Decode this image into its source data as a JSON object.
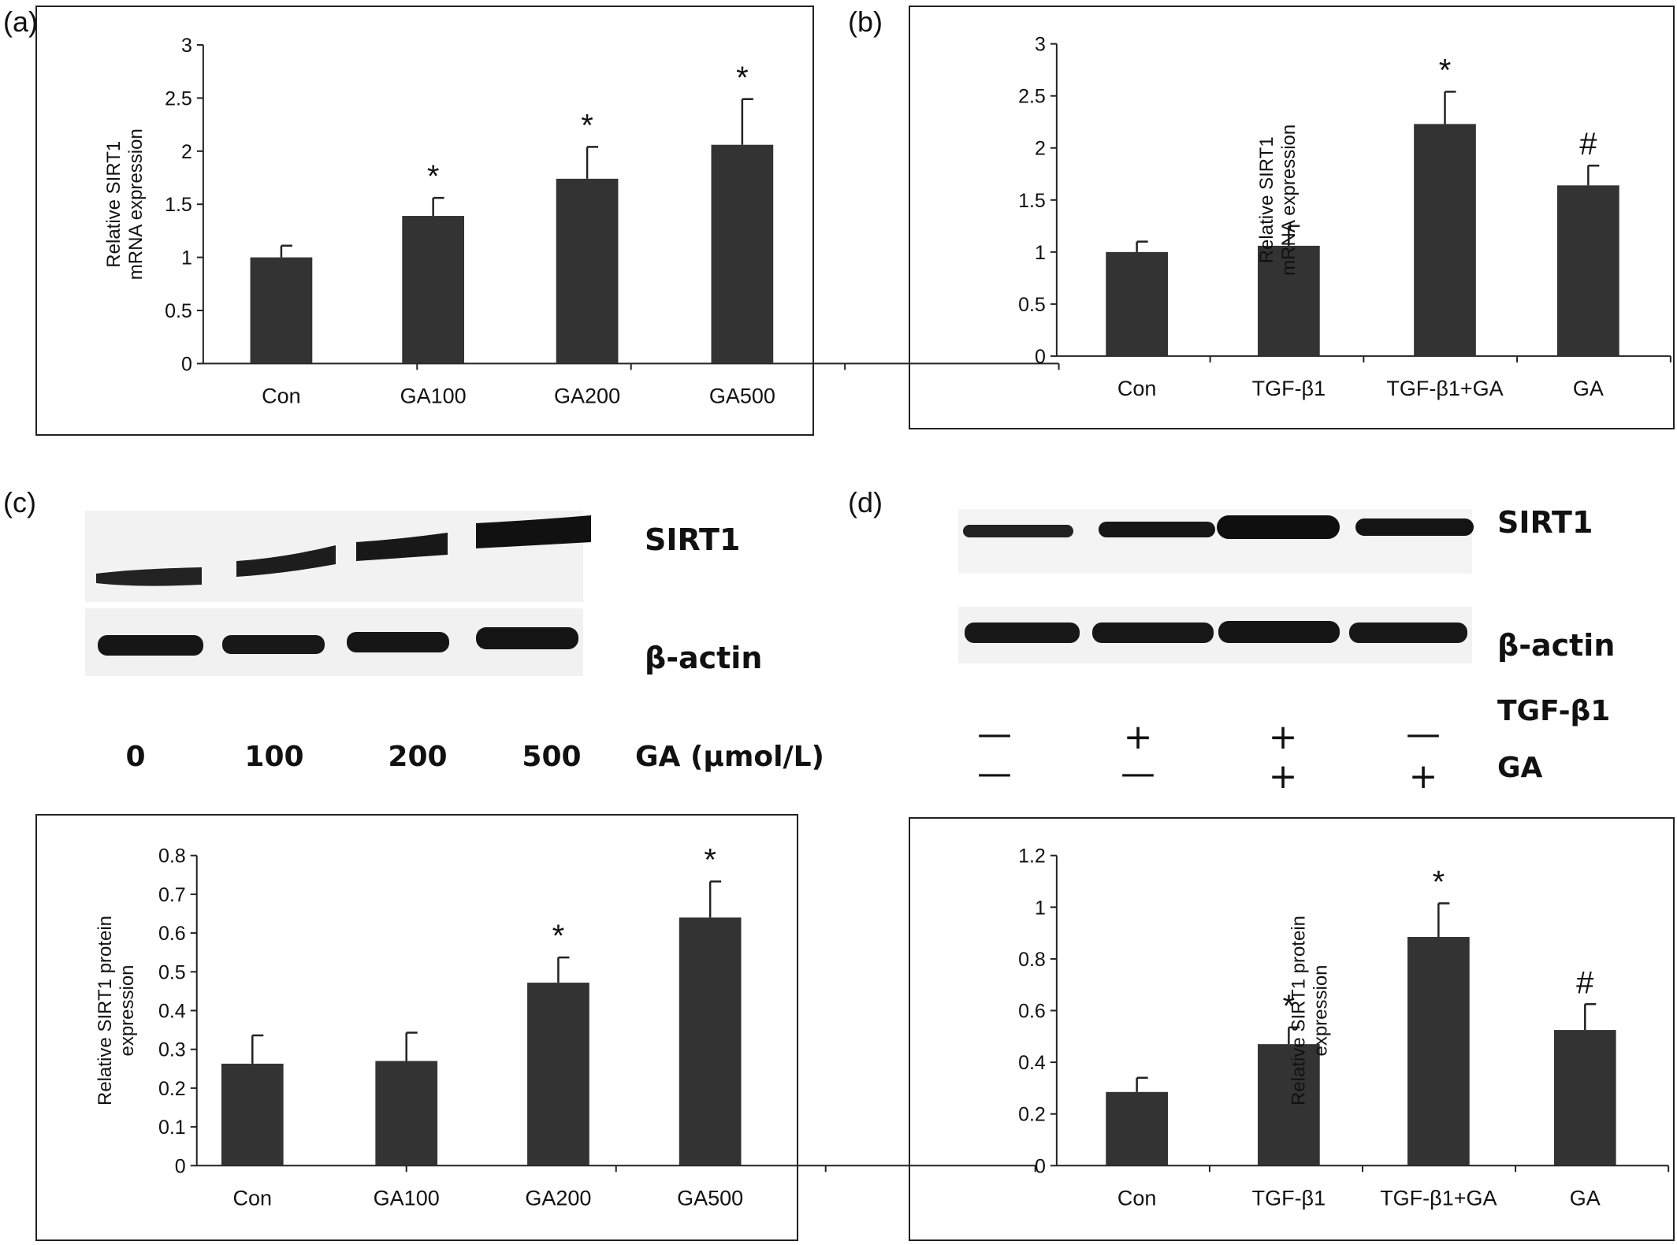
{
  "panels": {
    "a": "(a)",
    "b": "(b)",
    "c": "(c)",
    "d": "(d)"
  },
  "blot_c": {
    "bands": [
      "SIRT1",
      "β-actin"
    ],
    "lanes": [
      "0",
      "100",
      "200",
      "500"
    ],
    "condition_label": "GA (μmol/L)"
  },
  "blot_d": {
    "bands": [
      "SIRT1",
      "β-actin"
    ],
    "treatments": [
      {
        "name": "TGF-β1",
        "signs": [
          "—",
          "+",
          "+",
          "—"
        ]
      },
      {
        "name": "GA",
        "signs": [
          "—",
          "—",
          "+",
          "+"
        ]
      }
    ]
  },
  "chart_data": [
    {
      "panel": "a",
      "type": "bar",
      "categories": [
        "Con",
        "GA100",
        "GA200",
        "GA500"
      ],
      "values": [
        1.0,
        1.39,
        1.74,
        2.06
      ],
      "errors": [
        0.11,
        0.17,
        0.3,
        0.43
      ],
      "significance": [
        "",
        "*",
        "*",
        "*"
      ],
      "ylabel": [
        "Relative SIRT1",
        "mRNA expression"
      ],
      "ylim": [
        0,
        3
      ],
      "yticks": [
        "0",
        "0.5",
        "1",
        "1.5",
        "2",
        "2.5",
        "3"
      ],
      "color": "#333333"
    },
    {
      "panel": "b",
      "type": "bar",
      "categories": [
        "Con",
        "TGF-β1",
        "TGF-β1+GA",
        "GA"
      ],
      "values": [
        1.0,
        1.06,
        2.23,
        1.64
      ],
      "errors": [
        0.1,
        0.19,
        0.31,
        0.19
      ],
      "significance": [
        "",
        "",
        "*",
        "#"
      ],
      "ylabel": [
        "Relative SIRT1",
        "mRNA expression"
      ],
      "ylim": [
        0,
        3
      ],
      "yticks": [
        "0",
        "0.5",
        "1",
        "1.5",
        "2",
        "2.5",
        "3"
      ],
      "color": "#333333"
    },
    {
      "panel": "c",
      "type": "bar",
      "categories": [
        "Con",
        "GA100",
        "GA200",
        "GA500"
      ],
      "values": [
        0.263,
        0.27,
        0.472,
        0.64
      ],
      "errors": [
        0.073,
        0.073,
        0.065,
        0.093
      ],
      "significance": [
        "",
        "",
        "*",
        "*"
      ],
      "ylabel": [
        "Relative SIRT1 protein",
        "expression"
      ],
      "ylim": [
        0,
        0.8
      ],
      "yticks": [
        "0",
        "0.1",
        "0.2",
        "0.3",
        "0.4",
        "0.5",
        "0.6",
        "0.7",
        "0.8"
      ],
      "color": "#333333"
    },
    {
      "panel": "d",
      "type": "bar",
      "categories": [
        "Con",
        "TGF-β1",
        "TGF-β1+GA",
        "GA"
      ],
      "values": [
        0.285,
        0.47,
        0.885,
        0.525
      ],
      "errors": [
        0.055,
        0.065,
        0.13,
        0.1
      ],
      "significance": [
        "",
        "*",
        "*",
        "#"
      ],
      "ylabel": [
        "Relative SIRT1 protein",
        "expression"
      ],
      "ylim": [
        0,
        1.2
      ],
      "yticks": [
        "0",
        "0.2",
        "0.4",
        "0.6",
        "0.8",
        "1",
        "1.2"
      ],
      "color": "#333333"
    }
  ]
}
